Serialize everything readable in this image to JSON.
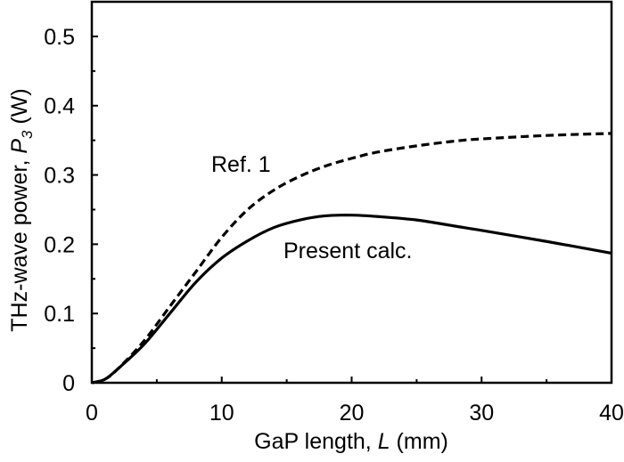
{
  "chart_data": {
    "type": "line",
    "xlabel": "GaP length, ",
    "xlabel_italic": "L",
    "xlabel_unit": " (mm)",
    "ylabel": "THz-wave power, ",
    "ylabel_italic": "P",
    "ylabel_sub": "3",
    "ylabel_unit": " (W)",
    "xlim": [
      0,
      40
    ],
    "ylim": [
      0,
      0.55
    ],
    "xticks": [
      "0",
      "10",
      "20",
      "30",
      "40"
    ],
    "yticks": [
      "0",
      "0.1",
      "0.2",
      "0.3",
      "0.4",
      "0.5"
    ],
    "grid": false,
    "series": [
      {
        "name": "Ref. 1",
        "style": "dashed",
        "x": [
          0,
          1,
          2,
          4,
          6,
          8,
          10,
          12,
          14,
          16,
          18,
          20,
          22,
          25,
          28,
          30,
          35,
          40
        ],
        "y": [
          0,
          0.005,
          0.02,
          0.06,
          0.11,
          0.16,
          0.21,
          0.25,
          0.278,
          0.298,
          0.313,
          0.324,
          0.333,
          0.342,
          0.349,
          0.352,
          0.357,
          0.36
        ]
      },
      {
        "name": "Present calc.",
        "style": "solid",
        "x": [
          0,
          1,
          2,
          4,
          6,
          8,
          10,
          12,
          14,
          16,
          18,
          20,
          22,
          25,
          28,
          30,
          35,
          40
        ],
        "y": [
          0,
          0.005,
          0.02,
          0.055,
          0.1,
          0.145,
          0.18,
          0.205,
          0.224,
          0.235,
          0.241,
          0.242,
          0.24,
          0.235,
          0.226,
          0.22,
          0.204,
          0.187
        ]
      }
    ]
  }
}
